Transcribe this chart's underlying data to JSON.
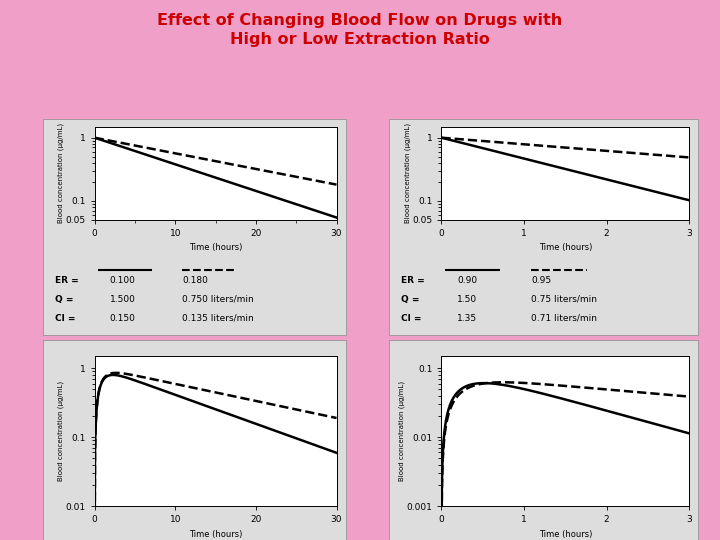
{
  "title_line1": "Effect of Changing Blood Flow on Drugs with",
  "title_line2": "High or Low Extraction Ratio",
  "title_color": "#cc0000",
  "bg_color": "#f0a0c8",
  "plot_bg": "white",
  "panel_outer_bg": "#e8e8e8",
  "panel_labels_top_left": {
    "er": [
      "0.100",
      "0.180"
    ],
    "q": [
      "1.500",
      "0.750 liters/min"
    ],
    "cl": [
      "0.150",
      "0.135 liters/min"
    ]
  },
  "panel_labels_top_right": {
    "er": [
      "0.90",
      "0.95"
    ],
    "q": [
      "1.50",
      "0.75 liters/min"
    ],
    "cl": [
      "1.35",
      "0.71 liters/min"
    ]
  },
  "top_left": {
    "ylabel": "Blood concentration (μg/mL)",
    "xlabel": "Time (hours)",
    "xlim": [
      0,
      30
    ],
    "xticks": [
      0,
      10,
      20,
      30
    ],
    "ylim_log": [
      0.05,
      1.5
    ],
    "yticks": [
      0.05,
      0.1,
      1.0
    ],
    "solid_k1": 0.097,
    "dashed_k1": 0.057
  },
  "top_right": {
    "ylabel": "Blood concentration (μg/mL)",
    "xlabel": "Time (hours)",
    "xlim": [
      0,
      3
    ],
    "xticks": [
      0,
      1,
      2,
      3
    ],
    "ylim_log": [
      0.05,
      1.5
    ],
    "yticks": [
      0.05,
      0.1,
      1.0
    ],
    "solid_k1": 0.76,
    "dashed_k1": 0.24
  },
  "bot_left": {
    "ylabel": "Blood concentration (μg/mL)",
    "xlabel": "Time (hours)",
    "xlim": [
      0,
      30
    ],
    "xticks": [
      0,
      10,
      20,
      30
    ],
    "ylim_log": [
      0.01,
      1.5
    ],
    "yticks": [
      0.01,
      0.1,
      1.0
    ],
    "ka": 1.2,
    "solid_ke": 0.097,
    "dashed_ke": 0.057,
    "dose_solid": 1.0,
    "dose_dashed": 1.0
  },
  "bot_right": {
    "ylabel": "Blood concentration (μg/mL)",
    "xlabel": "Time (hours)",
    "xlim": [
      0,
      3
    ],
    "xticks": [
      0,
      1,
      2,
      3
    ],
    "ylim_log": [
      0.001,
      0.15
    ],
    "yticks": [
      0.001,
      0.01,
      0.1
    ],
    "ka": 4.0,
    "solid_ke": 0.76,
    "dashed_ke": 0.24,
    "dose_solid": 0.09,
    "dose_dashed": 0.075
  }
}
